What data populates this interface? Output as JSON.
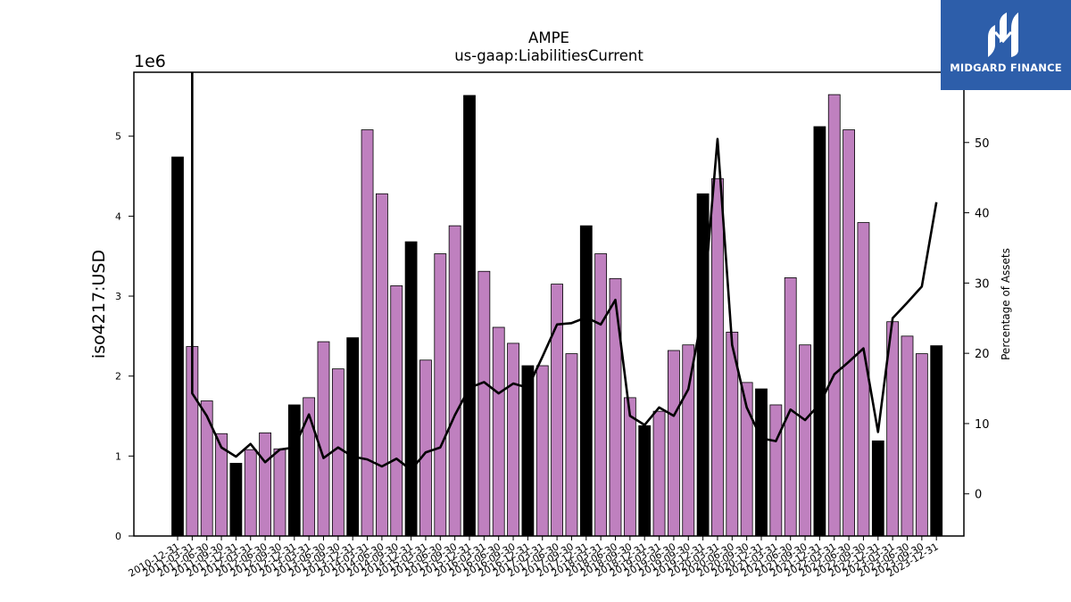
{
  "logo": {
    "text": "MIDGARD FINANCE",
    "icon": "midgard-logo-icon",
    "background": "#2d5eaa"
  },
  "chart_data": {
    "type": "bar",
    "title": "AMPE",
    "subtitle": "us-gaap:LiabilitiesCurrent",
    "ylabel": "iso4217:USD",
    "y_offset_label": "1e6",
    "y2label": "Percentage of Assets",
    "ylim": [
      0,
      5800000
    ],
    "y2lim": [
      -6,
      60
    ],
    "y_ticks": [
      0,
      1,
      2,
      3,
      4,
      5
    ],
    "y2_ticks": [
      0,
      10,
      20,
      30,
      40,
      50
    ],
    "colors": {
      "quarter": "#bf80bf",
      "year_end": "#000000",
      "line": "#000000"
    },
    "categories": [
      "2010-12-31",
      "2011-03-31",
      "2011-06-30",
      "2011-09-30",
      "2011-12-31",
      "2012-03-31",
      "2012-06-30",
      "2012-09-30",
      "2012-12-31",
      "2013-03-31",
      "2013-06-30",
      "2013-09-30",
      "2013-12-31",
      "2014-03-31",
      "2014-06-30",
      "2014-09-30",
      "2014-12-31",
      "2015-03-31",
      "2015-06-30",
      "2015-09-30",
      "2015-12-31",
      "2016-03-31",
      "2016-06-30",
      "2016-09-30",
      "2016-12-31",
      "2017-03-31",
      "2017-06-30",
      "2017-09-30",
      "2017-12-31",
      "2018-03-31",
      "2018-06-30",
      "2018-09-30",
      "2018-12-31",
      "2019-03-31",
      "2019-06-30",
      "2019-09-30",
      "2019-12-31",
      "2020-03-31",
      "2020-06-30",
      "2020-09-30",
      "2020-12-31",
      "2021-03-31",
      "2021-06-30",
      "2021-09-30",
      "2021-12-31",
      "2022-03-31",
      "2022-06-30",
      "2022-09-30",
      "2022-12-31",
      "2023-03-31",
      "2023-06-30",
      "2023-09-30",
      "2023-12-31"
    ],
    "series": [
      {
        "values": [
          4740000,
          2370000,
          1690000,
          1280000,
          910000,
          1080000,
          1290000,
          1090000,
          1640000,
          1730000,
          2430000,
          2090000,
          2480000,
          5080000,
          4280000,
          3130000,
          3680000,
          2200000,
          3530000,
          3880000,
          5510000,
          3310000,
          2610000,
          2410000,
          2130000,
          2130000,
          3150000,
          2280000,
          3880000,
          3530000,
          3220000,
          1730000,
          1380000,
          1560000,
          2320000,
          2390000,
          4280000,
          4470000,
          2550000,
          1920000,
          1840000,
          1640000,
          3230000,
          2390000,
          5120000,
          5520000,
          5080000,
          3920000,
          1190000,
          2680000,
          2500000,
          2280000,
          2380000
        ]
      },
      {
        "values": [
          null,
          14.3,
          11.1,
          6.6,
          5.3,
          7.1,
          4.5,
          6.3,
          6.6,
          11.3,
          5.1,
          6.6,
          5.3,
          4.9,
          3.9,
          5.0,
          3.4,
          5.9,
          6.6,
          11.2,
          15.1,
          15.9,
          14.3,
          15.7,
          15.1,
          19.5,
          24.1,
          24.3,
          25.1,
          24.1,
          27.6,
          11.1,
          9.8,
          12.3,
          11.1,
          14.9,
          26.0,
          50.5,
          21.2,
          12.3,
          7.9,
          7.5,
          12.0,
          10.5,
          12.8,
          17.0,
          18.8,
          20.7,
          8.8,
          25.0,
          27.2,
          29.5,
          41.5
        ]
      }
    ],
    "grid": false,
    "legend": "none"
  }
}
